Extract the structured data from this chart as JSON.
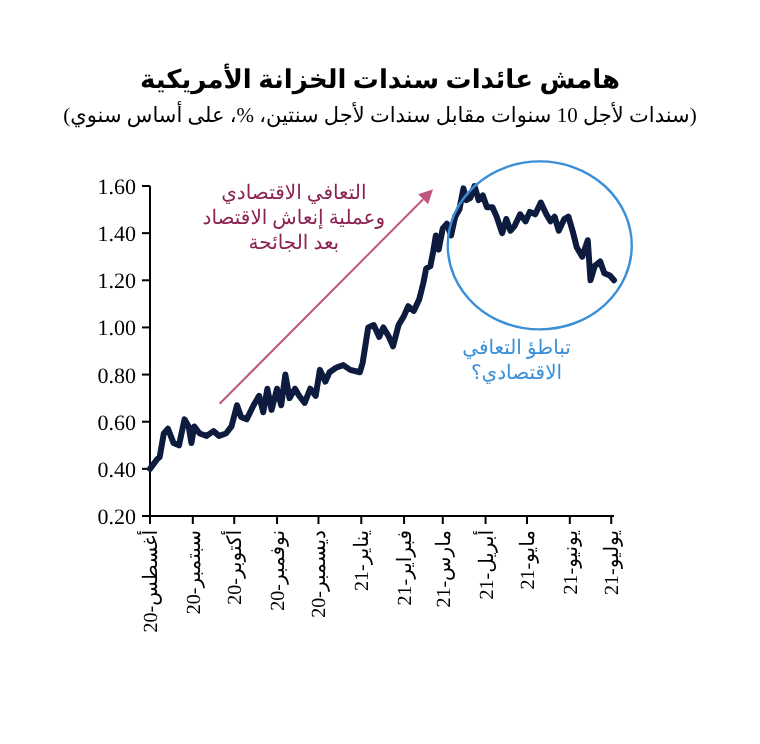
{
  "chart_data": {
    "type": "line",
    "title": "هامش عائدات سندات الخزانة الأمريكية",
    "subtitle": "(سندات لأجل 10 سنوات مقابل سندات لأجل سنتين، %، على أساس سنوي)",
    "annotations": [
      "التعافي الاقتصادي\nوعملية إنعاش الاقتصاد\nبعد الجائحة",
      "تباطؤ التعافي\nالاقتصادي؟"
    ],
    "x": [
      "2020-08-01",
      "2020-08-06",
      "2020-08-08",
      "2020-08-11",
      "2020-08-14",
      "2020-08-18",
      "2020-08-22",
      "2020-08-26",
      "2020-08-29",
      "2020-08-31",
      "2020-09-02",
      "2020-09-06",
      "2020-09-11",
      "2020-09-16",
      "2020-09-20",
      "2020-09-25",
      "2020-09-29",
      "2020-10-03",
      "2020-10-06",
      "2020-10-10",
      "2020-10-15",
      "2020-10-19",
      "2020-10-22",
      "2020-10-25",
      "2020-10-28",
      "2020-11-01",
      "2020-11-04",
      "2020-11-07",
      "2020-11-10",
      "2020-11-14",
      "2020-11-17",
      "2020-11-21",
      "2020-11-25",
      "2020-11-29",
      "2020-12-02",
      "2020-12-06",
      "2020-12-09",
      "2020-12-14",
      "2020-12-19",
      "2020-12-24",
      "2020-12-31",
      "2021-01-02",
      "2021-01-06",
      "2021-01-10",
      "2021-01-14",
      "2021-01-17",
      "2021-01-21",
      "2021-01-24",
      "2021-01-28",
      "2021-02-01",
      "2021-02-04",
      "2021-02-08",
      "2021-02-12",
      "2021-02-15",
      "2021-02-17",
      "2021-02-20",
      "2021-02-22",
      "2021-02-24",
      "2021-02-26",
      "2021-03-01",
      "2021-03-04",
      "2021-03-07",
      "2021-03-10",
      "2021-03-13",
      "2021-03-16",
      "2021-03-18",
      "2021-03-21",
      "2021-03-24",
      "2021-03-27",
      "2021-03-30",
      "2021-04-02",
      "2021-04-06",
      "2021-04-09",
      "2021-04-13",
      "2021-04-16",
      "2021-04-19",
      "2021-04-22",
      "2021-04-26",
      "2021-04-30",
      "2021-05-03",
      "2021-05-07",
      "2021-05-11",
      "2021-05-15",
      "2021-05-18",
      "2021-05-21",
      "2021-05-24",
      "2021-05-28",
      "2021-05-31",
      "2021-06-03",
      "2021-06-06",
      "2021-06-10",
      "2021-06-14",
      "2021-06-16",
      "2021-06-19",
      "2021-06-23",
      "2021-06-26",
      "2021-06-30",
      "2021-07-03"
    ],
    "series": [
      {
        "color": "#0d1b3e",
        "values": [
          0.4,
          0.44,
          0.45,
          0.55,
          0.57,
          0.51,
          0.5,
          0.61,
          0.58,
          0.51,
          0.58,
          0.55,
          0.54,
          0.56,
          0.54,
          0.55,
          0.58,
          0.67,
          0.62,
          0.61,
          0.67,
          0.71,
          0.64,
          0.74,
          0.65,
          0.74,
          0.67,
          0.8,
          0.7,
          0.74,
          0.71,
          0.68,
          0.74,
          0.71,
          0.82,
          0.77,
          0.81,
          0.83,
          0.84,
          0.82,
          0.81,
          0.85,
          1.0,
          1.01,
          0.96,
          1.0,
          0.96,
          0.92,
          1.01,
          1.05,
          1.09,
          1.07,
          1.12,
          1.19,
          1.25,
          1.26,
          1.32,
          1.39,
          1.33,
          1.42,
          1.44,
          1.39,
          1.47,
          1.5,
          1.59,
          1.54,
          1.55,
          1.6,
          1.54,
          1.56,
          1.51,
          1.51,
          1.47,
          1.4,
          1.46,
          1.41,
          1.43,
          1.48,
          1.45,
          1.49,
          1.48,
          1.53,
          1.48,
          1.45,
          1.47,
          1.41,
          1.46,
          1.47,
          1.41,
          1.34,
          1.3,
          1.37,
          1.2,
          1.26,
          1.28,
          1.23,
          1.22,
          1.2
        ]
      }
    ],
    "xlim": [
      "2020-08-01",
      "2021-07-03"
    ],
    "xticks": [
      {
        "value": "2020-08",
        "label": "أغسطس-20"
      },
      {
        "value": "2020-09",
        "label": "سبتمبر-20"
      },
      {
        "value": "2020-10",
        "label": "أكتوبر-20"
      },
      {
        "value": "2020-11",
        "label": "نوفمبر-20"
      },
      {
        "value": "2020-12",
        "label": "ديسمبر-20"
      },
      {
        "value": "2021-01",
        "label": "يناير-21"
      },
      {
        "value": "2021-02",
        "label": "فبراير-21"
      },
      {
        "value": "2021-03",
        "label": "مارس-21"
      },
      {
        "value": "2021-04",
        "label": "أبريل-21"
      },
      {
        "value": "2021-05",
        "label": "مايو-21"
      },
      {
        "value": "2021-06",
        "label": "يونيو-21"
      },
      {
        "value": "2021-07",
        "label": "يوليو-21"
      }
    ],
    "ylim": [
      0.2,
      1.6
    ],
    "yticks": [
      {
        "value": 0.2,
        "label": "0.20"
      },
      {
        "value": 0.4,
        "label": "0.40"
      },
      {
        "value": 0.6,
        "label": "0.60"
      },
      {
        "value": 0.8,
        "label": "0.80"
      },
      {
        "value": 1.0,
        "label": "1.00"
      },
      {
        "value": 1.2,
        "label": "1.20"
      },
      {
        "value": 1.4,
        "label": "1.40"
      },
      {
        "value": 1.6,
        "label": "1.60"
      }
    ],
    "grid": false,
    "line_style": "solid",
    "marker": "none"
  }
}
